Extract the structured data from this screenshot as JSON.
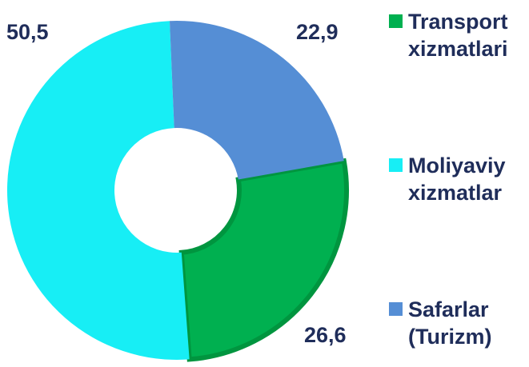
{
  "chart_data": {
    "type": "donut",
    "categories": [
      "Transport xizmatlari",
      "Moliyaviy xizmatlar",
      "Safarlar (Turizm)"
    ],
    "values": [
      26.6,
      50.5,
      22.9
    ],
    "value_labels": [
      "26,6",
      "50,5",
      "22,9"
    ],
    "colors": [
      "#00b050",
      "#17eef5",
      "#558ed5"
    ],
    "legend": "right"
  }
}
